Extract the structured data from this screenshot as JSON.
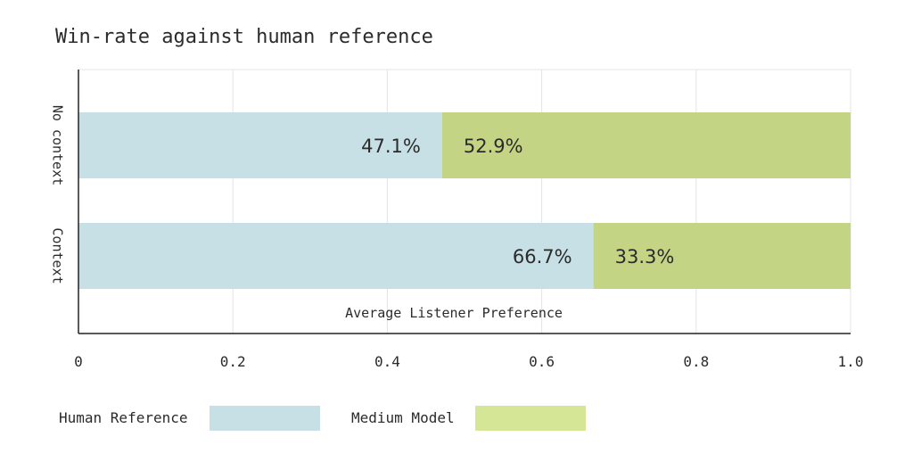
{
  "chart_data": {
    "type": "bar",
    "orientation": "horizontal",
    "stacked": true,
    "title": "Win-rate against human reference",
    "xlabel": "Average Listener Preference",
    "ylabel": "",
    "categories": [
      "No context",
      "Context"
    ],
    "series": [
      {
        "name": "Human Reference",
        "values": [
          0.471,
          0.667
        ],
        "labels": [
          "47.1%",
          "66.7%"
        ],
        "color": "#c6e0e5"
      },
      {
        "name": "Medium Model",
        "values": [
          0.529,
          0.333
        ],
        "labels": [
          "52.9%",
          "33.3%"
        ],
        "color": "#c3d485"
      }
    ],
    "xlim": [
      0,
      1.0
    ],
    "xticks": [
      0,
      0.2,
      0.4,
      0.6,
      0.8,
      1.0
    ],
    "xtick_labels": [
      "0",
      "0.2",
      "0.4",
      "0.6",
      "0.8",
      "1.0"
    ],
    "grid": true,
    "legend_position": "bottom-left",
    "legend_swatch_colors": [
      "#c6e0e5",
      "#d6e697"
    ]
  }
}
